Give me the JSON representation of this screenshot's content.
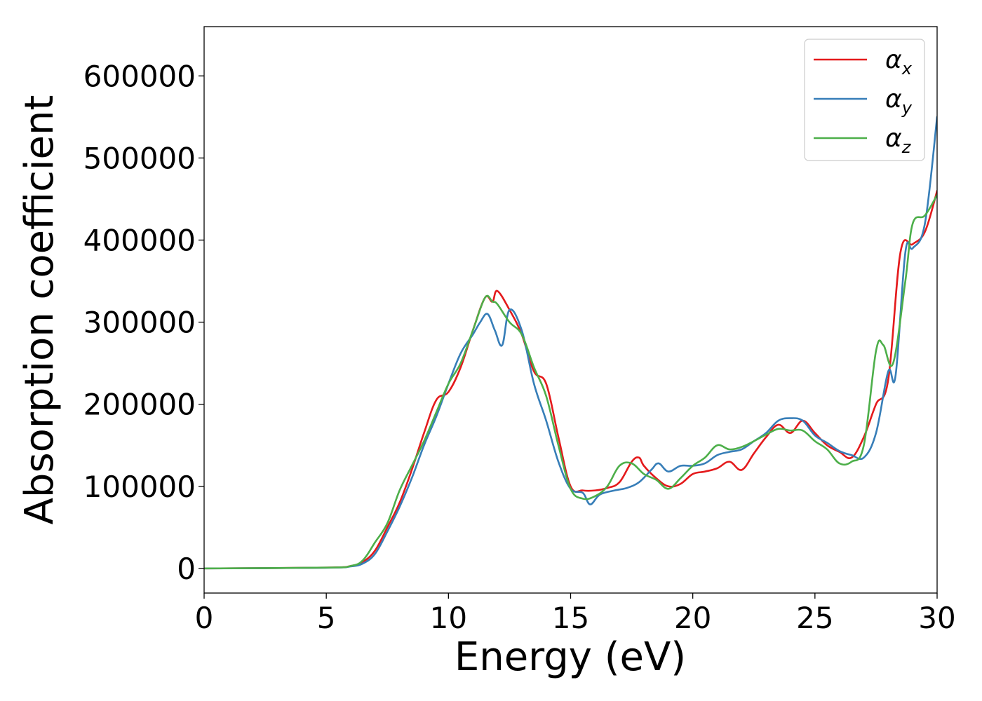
{
  "chart_data": {
    "type": "line",
    "xlabel": "Energy (eV)",
    "ylabel": "Absorption coefficient",
    "xlim": [
      0,
      30
    ],
    "ylim": [
      -30000,
      660000
    ],
    "xticks": [
      0,
      5,
      10,
      15,
      20,
      25,
      30
    ],
    "xtick_labels": [
      "0",
      "5",
      "10",
      "15",
      "20",
      "25",
      "30"
    ],
    "yticks": [
      0,
      100000,
      200000,
      300000,
      400000,
      500000,
      600000
    ],
    "ytick_labels": [
      "0",
      "100000",
      "200000",
      "300000",
      "400000",
      "500000",
      "600000"
    ],
    "grid": false,
    "legend_position": "top-right",
    "series": [
      {
        "name": "α",
        "name_sub": "x",
        "color": "#e41a1c",
        "points": [
          [
            0,
            0
          ],
          [
            5,
            1000
          ],
          [
            6,
            3000
          ],
          [
            6.5,
            8000
          ],
          [
            7,
            22000
          ],
          [
            7.5,
            50000
          ],
          [
            8,
            80000
          ],
          [
            8.5,
            120000
          ],
          [
            9,
            165000
          ],
          [
            9.5,
            205000
          ],
          [
            10,
            215000
          ],
          [
            10.5,
            245000
          ],
          [
            11,
            290000
          ],
          [
            11.5,
            330000
          ],
          [
            11.8,
            325000
          ],
          [
            12,
            338000
          ],
          [
            12.5,
            315000
          ],
          [
            13,
            285000
          ],
          [
            13.5,
            240000
          ],
          [
            14,
            225000
          ],
          [
            14.5,
            160000
          ],
          [
            15,
            100000
          ],
          [
            15.5,
            95000
          ],
          [
            16,
            95000
          ],
          [
            16.5,
            98000
          ],
          [
            17,
            105000
          ],
          [
            17.5,
            130000
          ],
          [
            17.8,
            135000
          ],
          [
            18,
            125000
          ],
          [
            18.5,
            110000
          ],
          [
            19,
            100000
          ],
          [
            19.5,
            103000
          ],
          [
            20,
            115000
          ],
          [
            20.5,
            118000
          ],
          [
            21,
            122000
          ],
          [
            21.5,
            130000
          ],
          [
            22,
            120000
          ],
          [
            22.5,
            140000
          ],
          [
            23,
            160000
          ],
          [
            23.5,
            175000
          ],
          [
            24,
            165000
          ],
          [
            24.5,
            180000
          ],
          [
            25,
            165000
          ],
          [
            25.5,
            150000
          ],
          [
            26,
            142000
          ],
          [
            26.5,
            135000
          ],
          [
            27,
            160000
          ],
          [
            27.5,
            200000
          ],
          [
            28,
            230000
          ],
          [
            28.5,
            385000
          ],
          [
            29,
            395000
          ],
          [
            29.5,
            410000
          ],
          [
            30,
            460000
          ]
        ]
      },
      {
        "name": "α",
        "name_sub": "y",
        "color": "#377eb8",
        "points": [
          [
            0,
            0
          ],
          [
            5,
            800
          ],
          [
            6,
            2500
          ],
          [
            6.5,
            6000
          ],
          [
            7,
            18000
          ],
          [
            7.5,
            45000
          ],
          [
            8,
            75000
          ],
          [
            8.5,
            110000
          ],
          [
            9,
            150000
          ],
          [
            9.5,
            185000
          ],
          [
            10,
            225000
          ],
          [
            10.5,
            262000
          ],
          [
            11,
            285000
          ],
          [
            11.3,
            300000
          ],
          [
            11.6,
            310000
          ],
          [
            11.9,
            290000
          ],
          [
            12.2,
            272000
          ],
          [
            12.5,
            315000
          ],
          [
            13,
            290000
          ],
          [
            13.5,
            225000
          ],
          [
            14,
            180000
          ],
          [
            14.5,
            130000
          ],
          [
            15,
            97000
          ],
          [
            15.5,
            92000
          ],
          [
            15.8,
            78000
          ],
          [
            16.2,
            90000
          ],
          [
            16.8,
            95000
          ],
          [
            17.3,
            98000
          ],
          [
            17.8,
            105000
          ],
          [
            18.3,
            120000
          ],
          [
            18.6,
            128000
          ],
          [
            19,
            118000
          ],
          [
            19.5,
            125000
          ],
          [
            20,
            125000
          ],
          [
            20.5,
            128000
          ],
          [
            21,
            138000
          ],
          [
            21.5,
            142000
          ],
          [
            22,
            145000
          ],
          [
            22.5,
            155000
          ],
          [
            23,
            165000
          ],
          [
            23.5,
            180000
          ],
          [
            24,
            183000
          ],
          [
            24.5,
            180000
          ],
          [
            25,
            162000
          ],
          [
            25.5,
            153000
          ],
          [
            26,
            143000
          ],
          [
            26.5,
            138000
          ],
          [
            27,
            135000
          ],
          [
            27.5,
            165000
          ],
          [
            28,
            240000
          ],
          [
            28.3,
            235000
          ],
          [
            28.7,
            385000
          ],
          [
            29,
            390000
          ],
          [
            29.5,
            420000
          ],
          [
            30,
            550000
          ]
        ]
      },
      {
        "name": "α",
        "name_sub": "z",
        "color": "#4daf4a",
        "points": [
          [
            0,
            0
          ],
          [
            5,
            1000
          ],
          [
            6,
            3000
          ],
          [
            6.5,
            10000
          ],
          [
            7,
            32000
          ],
          [
            7.5,
            55000
          ],
          [
            8,
            95000
          ],
          [
            8.5,
            125000
          ],
          [
            9,
            155000
          ],
          [
            9.5,
            190000
          ],
          [
            10,
            225000
          ],
          [
            10.5,
            250000
          ],
          [
            11,
            290000
          ],
          [
            11.5,
            330000
          ],
          [
            11.8,
            325000
          ],
          [
            12,
            322000
          ],
          [
            12.5,
            300000
          ],
          [
            13,
            285000
          ],
          [
            13.5,
            245000
          ],
          [
            14,
            210000
          ],
          [
            14.5,
            150000
          ],
          [
            15,
            97000
          ],
          [
            15.5,
            85000
          ],
          [
            16,
            88000
          ],
          [
            16.5,
            100000
          ],
          [
            17,
            125000
          ],
          [
            17.5,
            128000
          ],
          [
            18,
            115000
          ],
          [
            18.5,
            108000
          ],
          [
            19,
            97000
          ],
          [
            19.5,
            110000
          ],
          [
            20,
            125000
          ],
          [
            20.5,
            135000
          ],
          [
            21,
            150000
          ],
          [
            21.5,
            145000
          ],
          [
            22,
            148000
          ],
          [
            22.5,
            155000
          ],
          [
            23,
            163000
          ],
          [
            23.5,
            170000
          ],
          [
            24,
            168000
          ],
          [
            24.5,
            168000
          ],
          [
            25,
            155000
          ],
          [
            25.5,
            145000
          ],
          [
            26,
            128000
          ],
          [
            26.5,
            130000
          ],
          [
            27,
            150000
          ],
          [
            27.5,
            265000
          ],
          [
            27.8,
            272000
          ],
          [
            28.2,
            250000
          ],
          [
            28.7,
            350000
          ],
          [
            29,
            420000
          ],
          [
            29.5,
            430000
          ],
          [
            30,
            455000
          ]
        ]
      }
    ]
  }
}
